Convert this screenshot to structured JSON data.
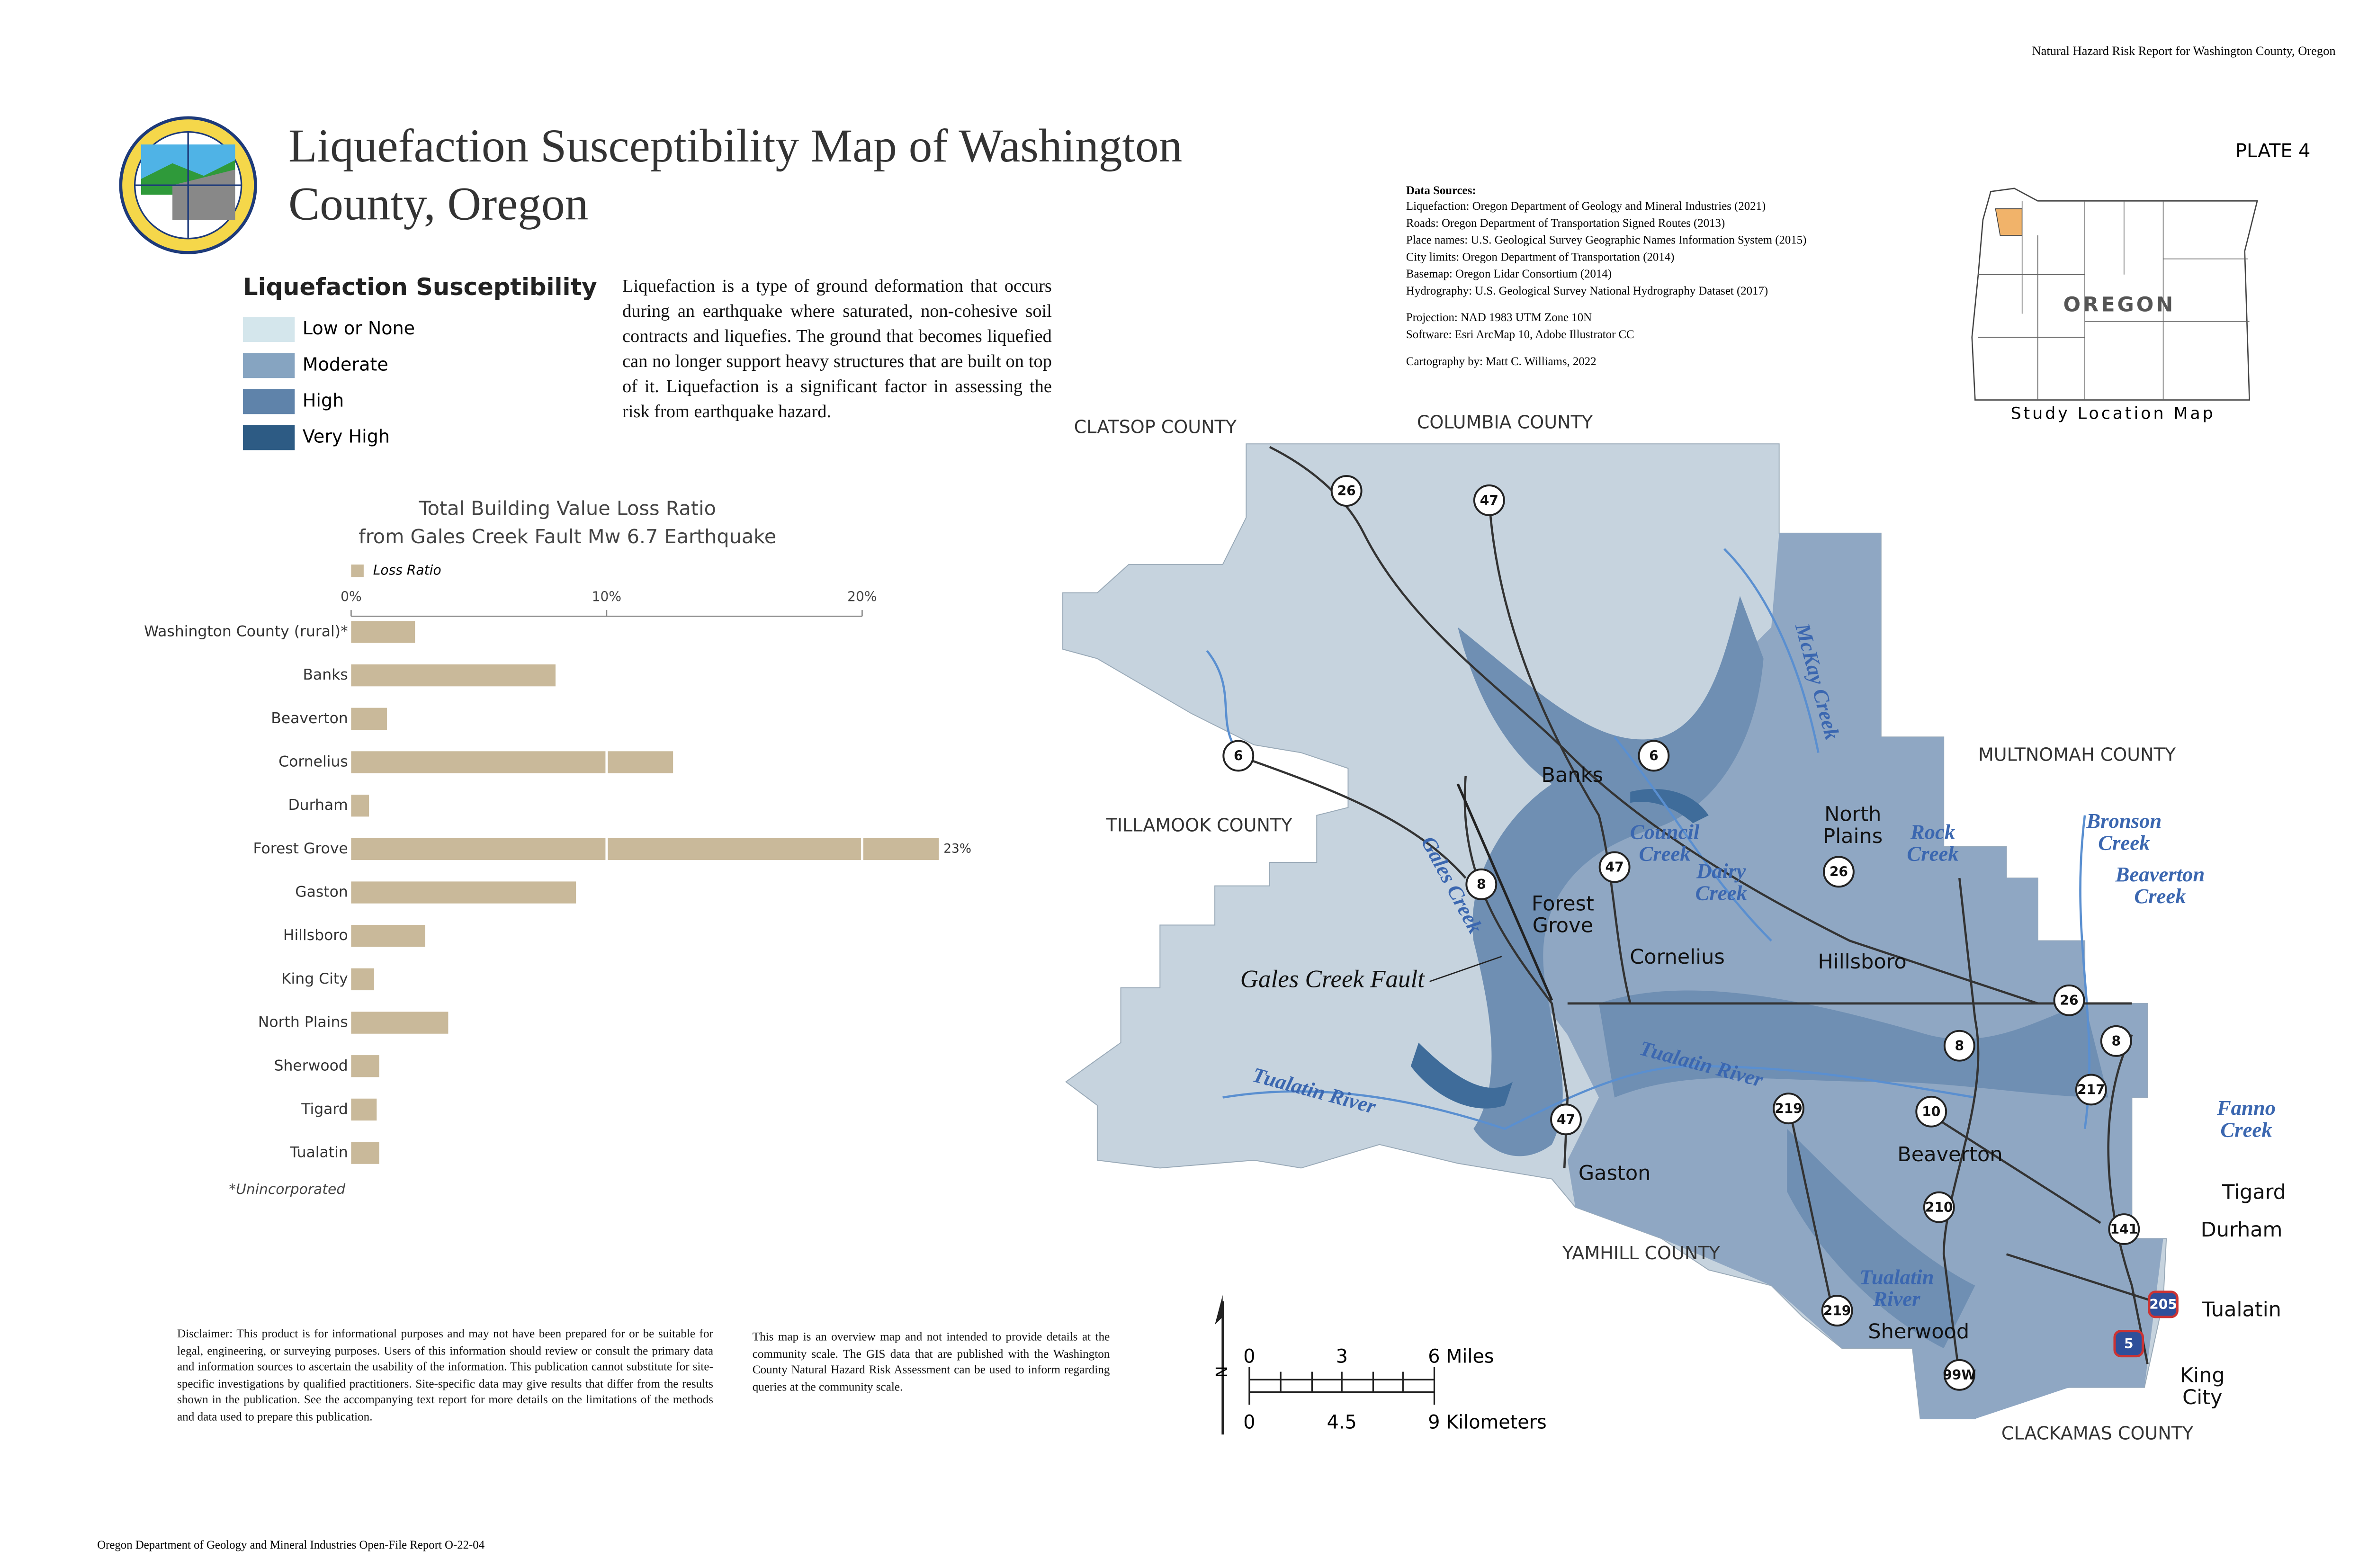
{
  "header": {
    "report_name": "Natural Hazard Risk Report for Washington County, Oregon",
    "title_lines": [
      "Liquefaction Susceptibility Map of Washington",
      "County, Oregon"
    ],
    "plate": "PLATE 4"
  },
  "legend": {
    "title": "Liquefaction Susceptibility",
    "items": [
      {
        "label": "Low or None",
        "color": "#d4e6ec"
      },
      {
        "label": "Moderate",
        "color": "#86a4c1"
      },
      {
        "label": "High",
        "color": "#5f83aa"
      },
      {
        "label": "Very High",
        "color": "#2d5b84"
      }
    ]
  },
  "description": "Liquefaction is a type of ground deformation that occurs during an earthquake where saturated, non-cohesive soil contracts and liquefies. The ground that becomes liquefied can no longer support heavy structures that are built on top of it. Liquefaction is a significant factor in assessing the risk from earthquake hazard.",
  "data_sources": {
    "heading": "Data Sources:",
    "lines": [
      "Liquefaction: Oregon Department of Geology and Mineral Industries (2021)",
      "Roads: Oregon Department of Transportation Signed Routes (2013)",
      "Place names: U.S. Geological Survey Geographic Names Information System (2015)",
      "City limits: Oregon Department of Transportation (2014)",
      "Basemap: Oregon Lidar Consortium (2014)",
      "Hydrography: U.S. Geological Survey National Hydrography Dataset (2017)"
    ],
    "projection": [
      "Projection: NAD 1983 UTM Zone 10N",
      "Software: Esri ArcMap 10, Adobe Illustrator CC"
    ],
    "cartography": "Cartography by: Matt C. Williams, 2022"
  },
  "chart_data": {
    "type": "bar",
    "orientation": "horizontal",
    "title_lines": [
      "Total Building Value Loss Ratio",
      "from Gales Creek Fault Mw 6.7 Earthquake"
    ],
    "categories": [
      "Washington County (rural)*",
      "Banks",
      "Beaverton",
      "Cornelius",
      "Durham",
      "Forest Grove",
      "Gaston",
      "Hillsboro",
      "King City",
      "North Plains",
      "Sherwood",
      "Tigard",
      "Tualatin"
    ],
    "series": [
      {
        "name": "Loss Ratio",
        "color": "#c9b99a",
        "values": [
          2.5,
          8,
          1.4,
          12.6,
          0.7,
          23,
          8.8,
          2.9,
          0.9,
          3.8,
          1.1,
          1.0,
          1.1
        ],
        "value_labels": [
          null,
          null,
          null,
          null,
          null,
          "23%",
          null,
          null,
          null,
          null,
          null,
          null,
          null
        ]
      }
    ],
    "xlim": [
      0,
      20
    ],
    "xticks": [
      {
        "value": 0,
        "label": "0%"
      },
      {
        "value": 10,
        "label": "10%"
      },
      {
        "value": 20,
        "label": "20%"
      }
    ],
    "grid": true,
    "footnote": "*Unincorporated"
  },
  "map": {
    "counties": [
      "CLATSOP COUNTY",
      "COLUMBIA COUNTY",
      "MULTNOMAH COUNTY",
      "TILLAMOOK COUNTY",
      "YAMHILL COUNTY",
      "CLACKAMAS COUNTY"
    ],
    "places": [
      [
        "Banks"
      ],
      [
        "North",
        "Plains"
      ],
      [
        "Forest",
        "Grove"
      ],
      [
        "Cornelius"
      ],
      [
        "Hillsboro"
      ],
      [
        "Gaston"
      ],
      [
        "Beaverton"
      ],
      [
        "Tigard"
      ],
      [
        "Durham"
      ],
      [
        "Sherwood"
      ],
      [
        "Tualatin"
      ],
      [
        "King",
        "City"
      ]
    ],
    "water": [
      [
        "Council",
        "Creek"
      ],
      [
        "Dairy",
        "Creek"
      ],
      [
        "Rock",
        "Creek"
      ],
      [
        "Bronson",
        "Creek"
      ],
      [
        "Beaverton",
        "Creek"
      ],
      [
        "Fanno",
        "Creek"
      ],
      [
        "Tualatin River"
      ],
      [
        "Tualatin River"
      ],
      [
        "Tualatin",
        "River"
      ],
      [
        "McKay Creek"
      ],
      [
        "Gales Creek"
      ]
    ],
    "fault": "Gales Creek Fault",
    "routes": [
      "26",
      "47",
      "6",
      "6",
      "8",
      "47",
      "26",
      "26",
      "8",
      "8",
      "217",
      "10",
      "219",
      "47",
      "210",
      "141",
      "219",
      "99W",
      "205",
      "5"
    ],
    "scale": {
      "miles": [
        "0",
        "3",
        "6 Miles"
      ],
      "kilometers": [
        "0",
        "4.5",
        "9 Kilometers"
      ],
      "north": "N"
    }
  },
  "locator": {
    "state": "OREGON",
    "caption": "Study Location Map"
  },
  "disclaimer": "Disclaimer: This product is for informational purposes and may not have been prepared for or be suitable for legal, engineering, or surveying purposes. Users of this information should review or consult the primary data and information sources to ascertain the usability of the information. This publication cannot substitute for site-specific investigations by qualified practitioners. Site-specific data may give results that differ from the results shown in the publication. See the accompanying text report for more details on the limitations of the methods and data used to prepare this publication.",
  "overview_note": "This map is an overview map and not intended to provide details at the community scale. The GIS data that are published with the Washington County Natural Hazard Risk Assessment can be used to inform regarding queries at the community scale.",
  "footer": "Oregon Department of Geology and Mineral Industries Open-File Report O-22-04"
}
